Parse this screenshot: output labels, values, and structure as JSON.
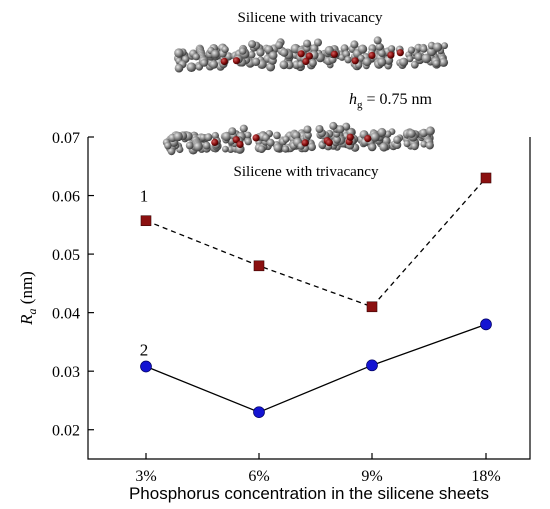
{
  "inset": {
    "top_caption": "Silicene with trivacancy",
    "bottom_caption": "Silicene with trivacancy",
    "gap_label_symbol": "h",
    "gap_label_sub": "g",
    "gap_label_value": " = 0.75 nm",
    "atom_color": "#8a8a8a",
    "dopant_color": "#8b1010"
  },
  "chart_data": {
    "type": "line",
    "categories": [
      "3%",
      "6%",
      "9%",
      "18%"
    ],
    "xlabel": "Phosphorus concentration in the silicene sheets",
    "ylabel_symbol": "R",
    "ylabel_sub": "a",
    "ylabel_unit": " (nm)",
    "ylim": [
      0.015,
      0.07
    ],
    "yticks": [
      0.02,
      0.03,
      0.04,
      0.05,
      0.06,
      0.07
    ],
    "ytick_labels": [
      "0.02",
      "0.03",
      "0.04",
      "0.05",
      "0.06",
      "0.07"
    ],
    "grid": false,
    "series": [
      {
        "name": "1",
        "values": [
          0.0557,
          0.048,
          0.041,
          0.063
        ],
        "marker": "square",
        "color": "#8b1010",
        "line": "dashed"
      },
      {
        "name": "2",
        "values": [
          0.0308,
          0.023,
          0.031,
          0.038
        ],
        "marker": "circle",
        "color": "#1414d2",
        "line": "solid"
      }
    ]
  }
}
